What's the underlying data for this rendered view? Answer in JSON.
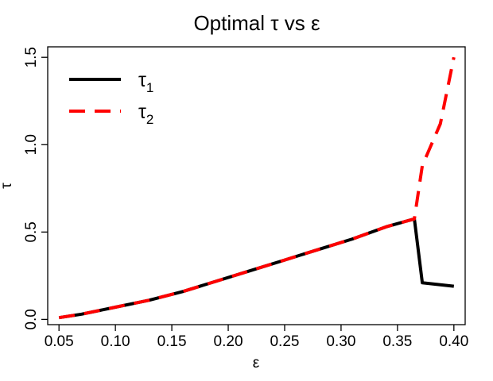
{
  "chart_data": {
    "type": "line",
    "title": "Optimal τ vs ε",
    "xlabel": "ε",
    "ylabel": "τ",
    "xlim": [
      0.04,
      0.41
    ],
    "ylim": [
      -0.03,
      1.56
    ],
    "xticks": [
      0.05,
      0.1,
      0.15,
      0.2,
      0.25,
      0.3,
      0.35,
      0.4
    ],
    "xtick_labels": [
      "0.05",
      "0.10",
      "0.15",
      "0.20",
      "0.25",
      "0.30",
      "0.35",
      "0.40"
    ],
    "yticks": [
      0.0,
      0.5,
      1.0,
      1.5
    ],
    "ytick_labels": [
      "0.0",
      "0.5",
      "1.0",
      "1.5"
    ],
    "legend_position": "top-left",
    "series": [
      {
        "name": "τ",
        "subscript": "1",
        "color": "#000000",
        "style": "solid",
        "x": [
          0.05,
          0.07,
          0.1,
          0.13,
          0.16,
          0.19,
          0.22,
          0.25,
          0.28,
          0.31,
          0.34,
          0.365,
          0.372,
          0.4
        ],
        "y": [
          0.01,
          0.03,
          0.07,
          0.11,
          0.16,
          0.22,
          0.28,
          0.34,
          0.4,
          0.46,
          0.53,
          0.575,
          0.21,
          0.19
        ]
      },
      {
        "name": "τ",
        "subscript": "2",
        "color": "#ff0000",
        "style": "dashed",
        "x": [
          0.05,
          0.07,
          0.1,
          0.13,
          0.16,
          0.19,
          0.22,
          0.25,
          0.28,
          0.31,
          0.34,
          0.365,
          0.372,
          0.388,
          0.4
        ],
        "y": [
          0.01,
          0.03,
          0.07,
          0.11,
          0.16,
          0.22,
          0.28,
          0.34,
          0.4,
          0.46,
          0.53,
          0.575,
          0.88,
          1.12,
          1.5
        ]
      }
    ]
  }
}
